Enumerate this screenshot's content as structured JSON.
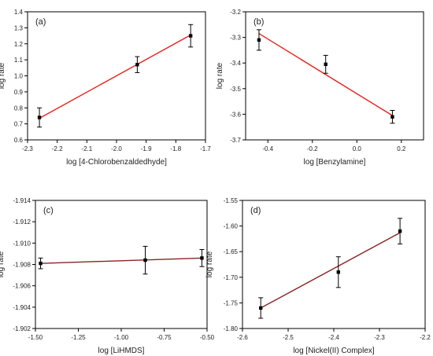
{
  "chart_data": [
    {
      "panel": "(a)",
      "type": "line",
      "xlabel": "log [4-Chlorobenzaldedhyde]",
      "ylabel": "log rate",
      "xlim": [
        -2.3,
        -1.7
      ],
      "ylim": [
        0.6,
        1.4
      ],
      "xticks": [
        -2.3,
        -2.2,
        -2.1,
        -2.0,
        -1.9,
        -1.8,
        -1.7
      ],
      "xtick_labels": [
        "-2.3",
        "-2.2",
        "-2.1",
        "-2.0",
        "-1.9",
        "-1.8",
        "-1.7"
      ],
      "yticks": [
        0.6,
        0.7,
        0.8,
        0.9,
        1.0,
        1.1,
        1.2,
        1.3,
        1.4
      ],
      "ytick_labels": [
        "0.6",
        "0.7",
        "0.8",
        "0.9",
        "1.0",
        "1.1",
        "1.2",
        "1.3",
        "1.4"
      ],
      "points": [
        {
          "x": -2.26,
          "y": 0.74,
          "err": 0.06
        },
        {
          "x": -1.93,
          "y": 1.07,
          "err": 0.05
        },
        {
          "x": -1.75,
          "y": 1.25,
          "err": 0.07
        }
      ],
      "fit": {
        "x": [
          -2.26,
          -1.75
        ],
        "y": [
          0.735,
          1.255
        ]
      },
      "fit_color": "#e8211c"
    },
    {
      "panel": "(b)",
      "type": "line",
      "xlabel": "log [Benzylamine]",
      "ylabel": "log rate",
      "xlim": [
        -0.5,
        0.3
      ],
      "ylim": [
        -3.7,
        -3.2
      ],
      "xticks": [
        -0.4,
        -0.2,
        0.0,
        0.2
      ],
      "xtick_labels": [
        "-0.4",
        "-0.2",
        "0.0",
        "0.2"
      ],
      "yticks": [
        -3.7,
        -3.6,
        -3.5,
        -3.4,
        -3.3,
        -3.2
      ],
      "ytick_labels": [
        "-3.7",
        "-3.6",
        "-3.5",
        "-3.4",
        "-3.3",
        "-3.2"
      ],
      "points": [
        {
          "x": -0.44,
          "y": -3.31,
          "err": 0.04
        },
        {
          "x": -0.14,
          "y": -3.405,
          "err": 0.035
        },
        {
          "x": 0.16,
          "y": -3.61,
          "err": 0.025
        }
      ],
      "fit": {
        "x": [
          -0.44,
          0.16
        ],
        "y": [
          -3.285,
          -3.605
        ]
      },
      "fit_color": "#e8211c"
    },
    {
      "panel": "(c)",
      "type": "line",
      "xlabel": "log [LiHMDS]",
      "ylabel": "log rate",
      "xlim": [
        -1.5,
        -0.5
      ],
      "ylim": [
        -1.914,
        -1.902
      ],
      "y_inverted": true,
      "xticks": [
        -1.5,
        -1.25,
        -1.0,
        -0.75,
        -0.5
      ],
      "xtick_labels": [
        "-1.50",
        "-1.25",
        "-1.00",
        "-0.75",
        "-0.50"
      ],
      "yticks": [
        -1.914,
        -1.912,
        -1.91,
        -1.908,
        -1.906,
        -1.904,
        -1.902
      ],
      "ytick_labels": [
        "-1.914",
        "-1.912",
        "-1.910",
        "-1.908",
        "-1.906",
        "-1.904",
        "-1.902"
      ],
      "points": [
        {
          "x": -1.47,
          "y": -1.9081,
          "err": 0.0005
        },
        {
          "x": -0.86,
          "y": -1.9084,
          "err": 0.0013
        },
        {
          "x": -0.53,
          "y": -1.9086,
          "err": 0.0008
        }
      ],
      "fit": {
        "x": [
          -1.47,
          -0.53
        ],
        "y": [
          -1.9081,
          -1.9086
        ]
      },
      "fit_color": "#8b2323"
    },
    {
      "panel": "(d)",
      "type": "line",
      "xlabel": "log [Nickel(II) Complex]",
      "ylabel": "log rate",
      "xlim": [
        -2.6,
        -2.2
      ],
      "ylim": [
        -1.8,
        -1.55
      ],
      "xticks": [
        -2.6,
        -2.5,
        -2.4,
        -2.3,
        -2.2
      ],
      "xtick_labels": [
        "-2.6",
        "-2.5",
        "-2.4",
        "-2.3",
        "-2.2"
      ],
      "yticks": [
        -1.8,
        -1.75,
        -1.7,
        -1.65,
        -1.6,
        -1.55
      ],
      "ytick_labels": [
        "-1.80",
        "-1.75",
        "-1.70",
        "-1.65",
        "-1.60",
        "-1.55"
      ],
      "points": [
        {
          "x": -2.56,
          "y": -1.76,
          "err": 0.02
        },
        {
          "x": -2.39,
          "y": -1.69,
          "err": 0.03
        },
        {
          "x": -2.255,
          "y": -1.61,
          "err": 0.025
        }
      ],
      "fit": {
        "x": [
          -2.56,
          -2.255
        ],
        "y": [
          -1.76,
          -1.613
        ]
      },
      "fit_color": "#8b2323"
    }
  ]
}
